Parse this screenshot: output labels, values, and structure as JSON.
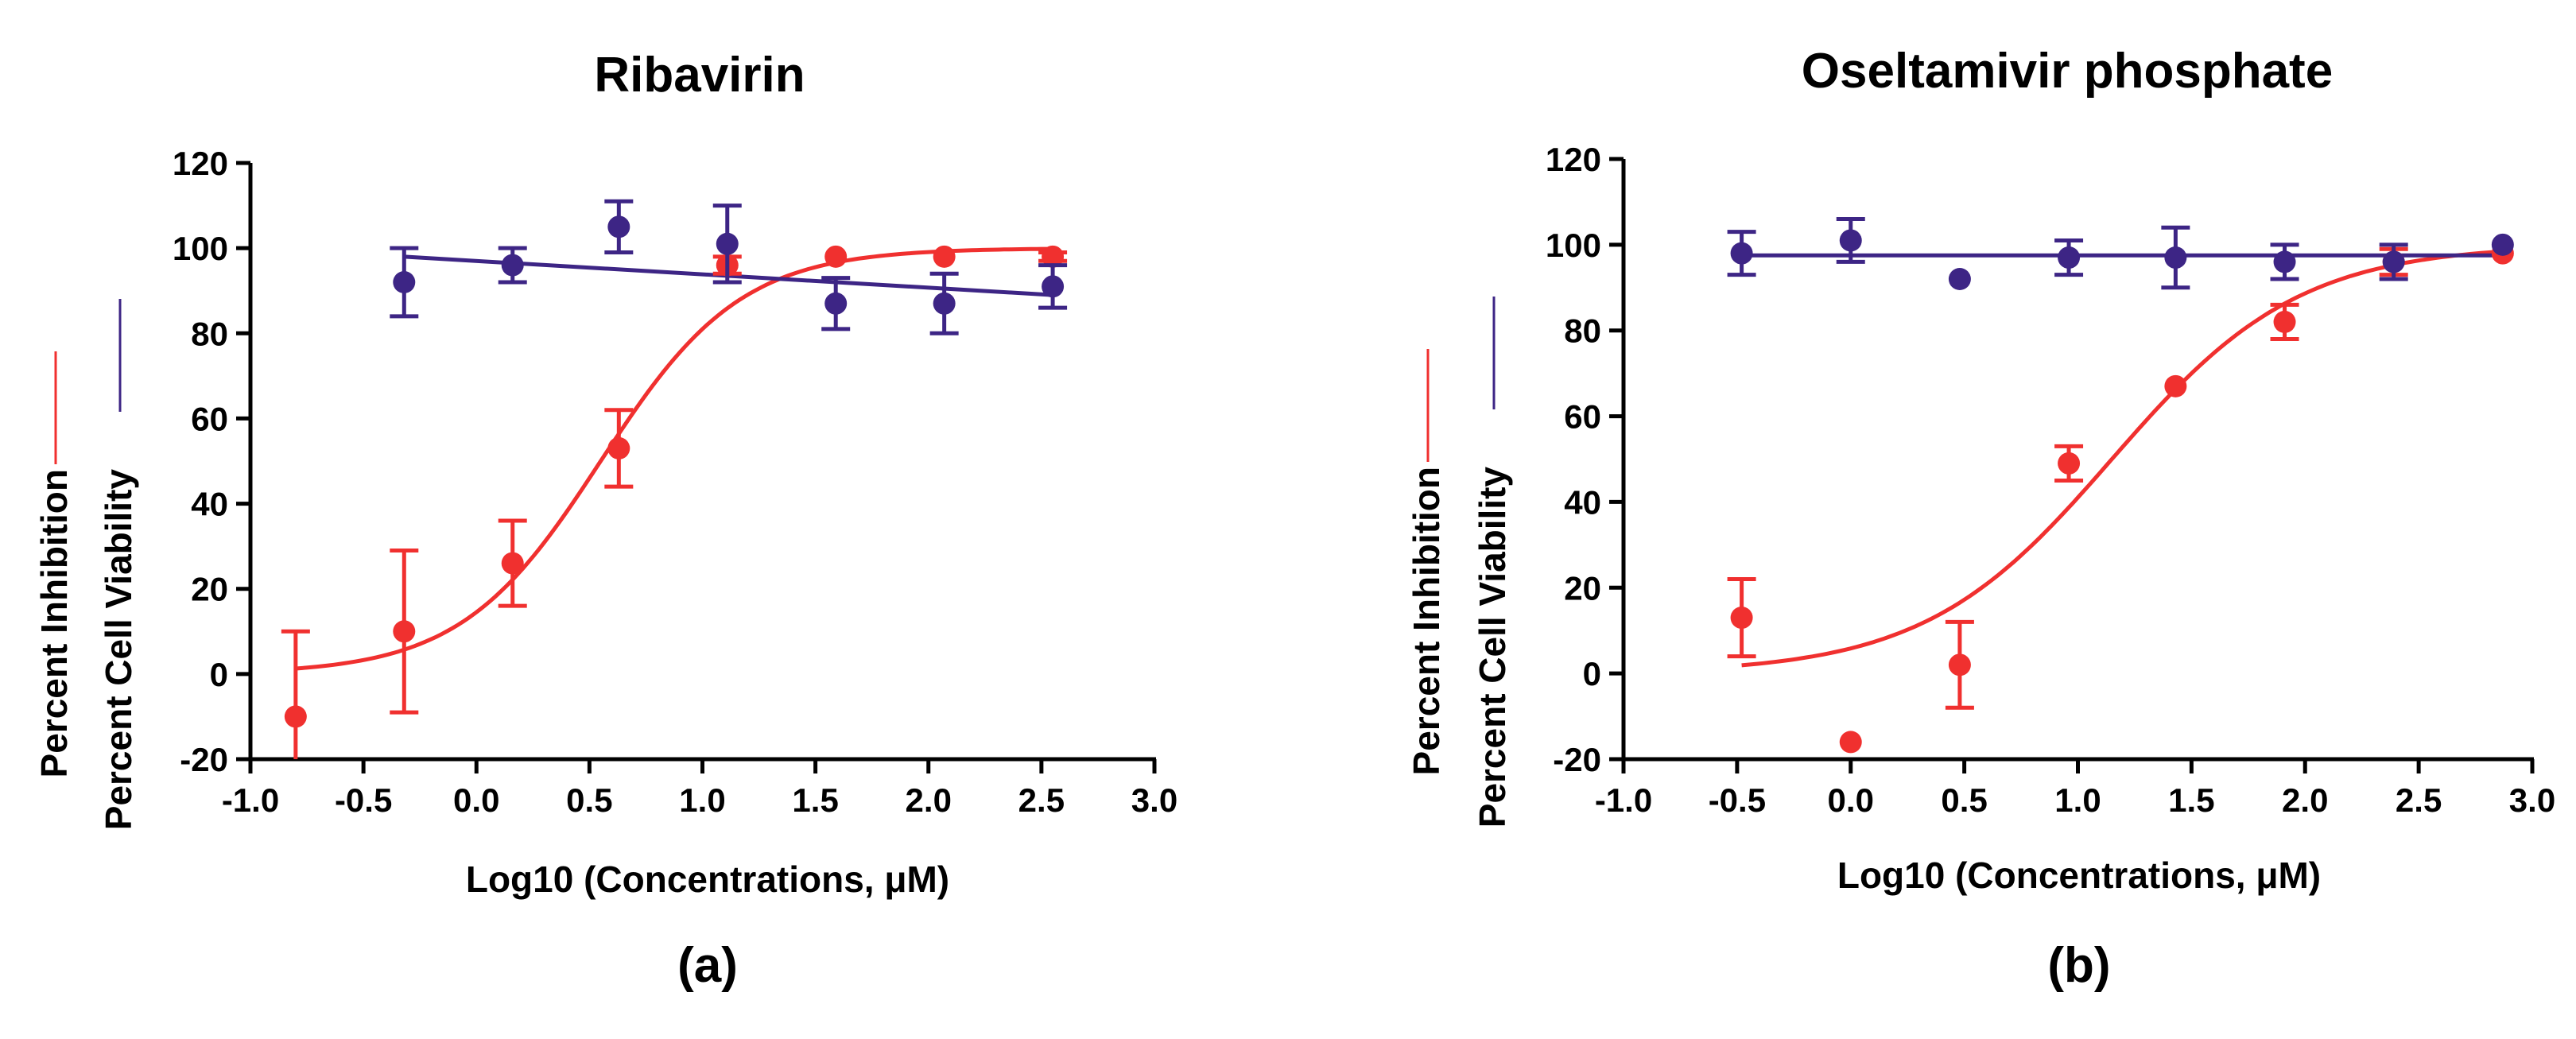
{
  "colors": {
    "inhibition": "#f0302f",
    "viability": "#3d2585",
    "axis": "#000000"
  },
  "chart_data": [
    {
      "type": "scatter",
      "title": "Ribavirin",
      "panel_label": "(a)",
      "xlabel": "Log10 (Concentrations, μM)",
      "ylabels": [
        "Percent Inhibition",
        "Percent Cell Viability"
      ],
      "xlim": [
        -1.0,
        3.0
      ],
      "ylim": [
        -20,
        120
      ],
      "xticks": [
        "-1.0",
        "-0.5",
        "0.0",
        "0.5",
        "1.0",
        "1.5",
        "2.0",
        "2.5",
        "3.0"
      ],
      "yticks": [
        "-20",
        "0",
        "20",
        "40",
        "60",
        "80",
        "100",
        "120"
      ],
      "grid": false,
      "series": [
        {
          "key": "inhibition",
          "points": [
            {
              "x": -0.8,
              "y": -10,
              "err": 20
            },
            {
              "x": -0.32,
              "y": 10,
              "err": 19
            },
            {
              "x": 0.16,
              "y": 26,
              "err": 10
            },
            {
              "x": 0.63,
              "y": 53,
              "err": 9
            },
            {
              "x": 1.11,
              "y": 96,
              "err": 2
            },
            {
              "x": 1.59,
              "y": 98,
              "err": 0
            },
            {
              "x": 2.07,
              "y": 98,
              "err": 0
            },
            {
              "x": 2.55,
              "y": 98,
              "err": 1
            }
          ],
          "fit": {
            "model": "sigmoid",
            "bottom": 0,
            "top": 100,
            "log_ic50": 0.55,
            "hill": 1.4
          }
        },
        {
          "key": "viability",
          "points": [
            {
              "x": -0.32,
              "y": 92,
              "err": 8
            },
            {
              "x": 0.16,
              "y": 96,
              "err": 4
            },
            {
              "x": 0.63,
              "y": 105,
              "err": 6
            },
            {
              "x": 1.11,
              "y": 101,
              "err": 9
            },
            {
              "x": 1.59,
              "y": 87,
              "err": 6
            },
            {
              "x": 2.07,
              "y": 87,
              "err": 7
            },
            {
              "x": 2.55,
              "y": 91,
              "err": 5
            }
          ],
          "fit": {
            "model": "line",
            "points": [
              [
                -0.32,
                98
              ],
              [
                2.55,
                89
              ]
            ]
          }
        }
      ]
    },
    {
      "type": "scatter",
      "title": "Oseltamivir phosphate",
      "panel_label": "(b)",
      "xlabel": "Log10 (Concentrations, μM)",
      "ylabels": [
        "Percent Inhibition",
        "Percent Cell Viability"
      ],
      "xlim": [
        -1.0,
        3.0
      ],
      "ylim": [
        -20,
        120
      ],
      "xticks": [
        "-1.0",
        "-0.5",
        "0.0",
        "0.5",
        "1.0",
        "1.5",
        "2.0",
        "2.5",
        "3.0"
      ],
      "yticks": [
        "-20",
        "0",
        "20",
        "40",
        "60",
        "80",
        "100",
        "120"
      ],
      "grid": false,
      "series": [
        {
          "key": "inhibition",
          "points": [
            {
              "x": -0.48,
              "y": 13,
              "err": 9
            },
            {
              "x": 0.0,
              "y": -16,
              "err": 0
            },
            {
              "x": 0.48,
              "y": 2,
              "err": 10
            },
            {
              "x": 0.96,
              "y": 49,
              "err": 4
            },
            {
              "x": 1.43,
              "y": 67,
              "err": 0
            },
            {
              "x": 1.91,
              "y": 82,
              "err": 4
            },
            {
              "x": 2.39,
              "y": 96,
              "err": 3
            },
            {
              "x": 2.87,
              "y": 98,
              "err": 0
            }
          ],
          "fit": {
            "model": "sigmoid",
            "bottom": 0,
            "top": 100,
            "log_ic50": 1.15,
            "hill": 1.05
          }
        },
        {
          "key": "viability",
          "points": [
            {
              "x": -0.48,
              "y": 98,
              "err": 5
            },
            {
              "x": 0.0,
              "y": 101,
              "err": 5
            },
            {
              "x": 0.48,
              "y": 92,
              "err": 0
            },
            {
              "x": 0.96,
              "y": 97,
              "err": 4
            },
            {
              "x": 1.43,
              "y": 97,
              "err": 7
            },
            {
              "x": 1.91,
              "y": 96,
              "err": 4
            },
            {
              "x": 2.39,
              "y": 96,
              "err": 4
            },
            {
              "x": 2.87,
              "y": 100,
              "err": 0
            }
          ],
          "fit": {
            "model": "line",
            "points": [
              [
                -0.48,
                97.5
              ],
              [
                2.87,
                97.5
              ]
            ]
          }
        }
      ]
    }
  ]
}
